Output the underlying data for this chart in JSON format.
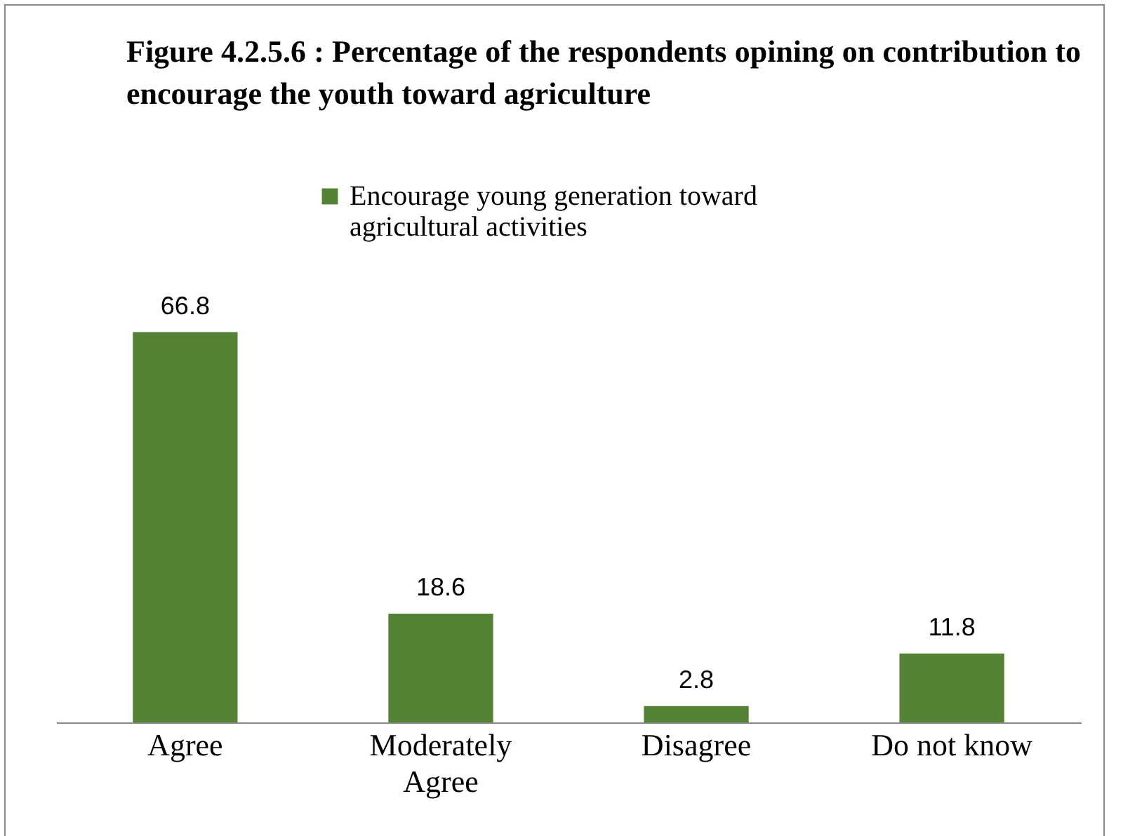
{
  "chart_data": {
    "type": "bar",
    "title": "Figure 4.2.5.6 : Percentage of the respondents opining on contribution to encourage the youth toward agriculture",
    "categories": [
      "Agree",
      "Moderately Agree",
      "Disagree",
      "Do not know"
    ],
    "series": [
      {
        "name": "Encourage young generation toward agricultural activities",
        "color": "#548235",
        "values": [
          66.8,
          18.6,
          2.8,
          11.8
        ]
      }
    ],
    "data_labels": true,
    "legend": "top right",
    "grid": false
  }
}
